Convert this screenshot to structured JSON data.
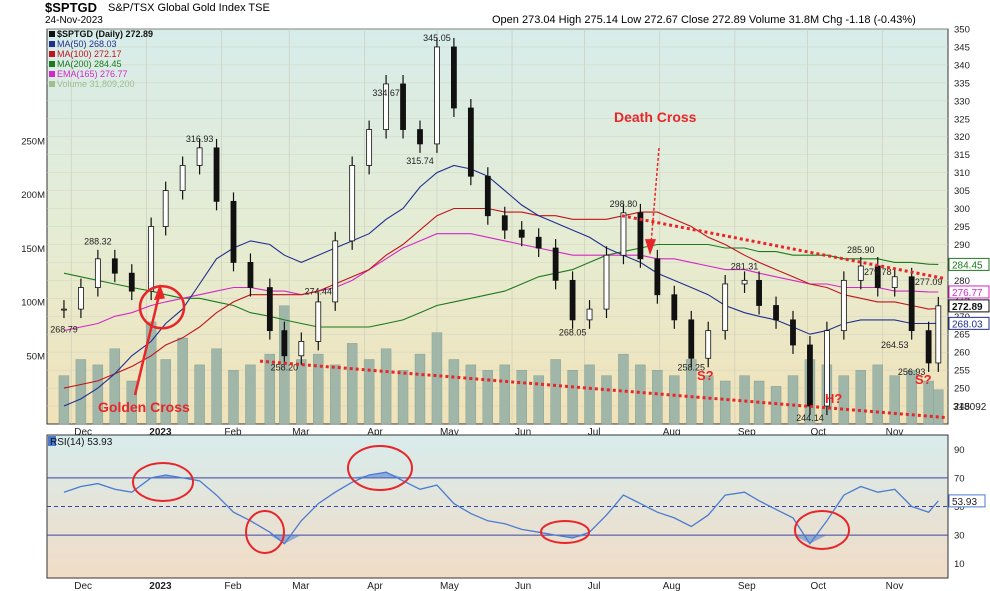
{
  "header": {
    "symbol": "$SPTGD",
    "name": "S&P/TSX Global Gold Index  TSE",
    "date": "24-Nov-2023",
    "ohlc_line": "Open 273.04  High 275.14  Low 272.67  Close 272.89  Volume 31.8M  Chg -1.18 (-0.43%)"
  },
  "chart_data": [
    {
      "type": "line",
      "panel": "price",
      "legend_position": "top-left",
      "legend": [
        {
          "label": "$SPTGD (Daily) 272.89",
          "color": "#111111"
        },
        {
          "label": "MA(50) 268.03",
          "color": "#1f2f8f"
        },
        {
          "label": "MA(100) 272.17",
          "color": "#c0141c"
        },
        {
          "label": "MA(200) 284.45",
          "color": "#1d7a1d"
        },
        {
          "label": "EMA(165) 276.77",
          "color": "#d427c8"
        },
        {
          "label": "Volume 31,809,200",
          "color": "#9fbf8f"
        }
      ],
      "x_labels": [
        "Dec",
        "2023",
        "Feb",
        "Mar",
        "Apr",
        "May",
        "Jun",
        "Jul",
        "Aug",
        "Sep",
        "Oct",
        "Nov"
      ],
      "ylim": [
        240,
        350
      ],
      "y_ticks": [
        245,
        250,
        255,
        260,
        265,
        270,
        275,
        280,
        285,
        290,
        295,
        300,
        305,
        310,
        315,
        320,
        325,
        330,
        335,
        340,
        345,
        350
      ],
      "volume_ticks": [
        "50M",
        "100M",
        "150M",
        "200M",
        "250M"
      ],
      "price_series": {
        "name": "$SPTGD",
        "x": [
          "2022-11-28",
          "2022-12-05",
          "2022-12-12",
          "2022-12-19",
          "2022-12-26",
          "2023-01-03",
          "2023-01-09",
          "2023-01-16",
          "2023-01-23",
          "2023-01-30",
          "2023-02-06",
          "2023-02-13",
          "2023-02-21",
          "2023-02-27",
          "2023-03-06",
          "2023-03-13",
          "2023-03-20",
          "2023-03-27",
          "2023-04-03",
          "2023-04-10",
          "2023-04-17",
          "2023-04-24",
          "2023-05-01",
          "2023-05-08",
          "2023-05-15",
          "2023-05-22",
          "2023-05-29",
          "2023-06-05",
          "2023-06-12",
          "2023-06-19",
          "2023-06-26",
          "2023-07-03",
          "2023-07-10",
          "2023-07-17",
          "2023-07-24",
          "2023-07-31",
          "2023-08-07",
          "2023-08-14",
          "2023-08-21",
          "2023-08-28",
          "2023-09-05",
          "2023-09-11",
          "2023-09-18",
          "2023-09-25",
          "2023-10-02",
          "2023-10-09",
          "2023-10-16",
          "2023-10-23",
          "2023-10-30",
          "2023-11-06",
          "2023-11-13",
          "2023-11-20",
          "2023-11-24"
        ],
        "values": [
          272,
          278,
          286,
          282,
          277,
          295,
          305,
          312,
          316.9,
          302,
          285,
          278,
          266,
          259,
          263,
          274,
          291,
          312,
          322,
          334.7,
          322,
          318,
          345,
          328,
          309,
          298,
          294,
          292,
          289,
          280,
          269,
          272,
          287,
          298.8,
          286,
          276,
          269,
          258.3,
          266,
          279,
          280,
          273,
          269,
          262,
          245,
          266,
          280,
          284,
          278,
          281,
          266,
          257,
          272.9
        ]
      },
      "ma50_values": [
        245,
        247,
        250,
        254,
        259,
        263,
        268,
        272,
        279,
        286,
        289,
        291,
        290,
        287,
        285,
        287,
        289,
        291,
        293,
        297,
        300,
        306,
        310,
        312,
        311,
        309,
        305,
        301,
        298,
        296,
        294,
        292,
        289,
        287,
        285,
        282,
        280,
        278,
        276,
        273,
        271,
        270,
        269,
        267,
        265,
        266,
        268,
        269,
        269,
        269,
        268,
        268,
        268.03
      ],
      "ma100_values": [
        250,
        251,
        252,
        254,
        256,
        259,
        262,
        264,
        267,
        271,
        274,
        276,
        276,
        276,
        276,
        277,
        279,
        281,
        283,
        287,
        290,
        294,
        298,
        300,
        300,
        300,
        299,
        299,
        298,
        298,
        297,
        297,
        297,
        298,
        299,
        299,
        297,
        295,
        292,
        290,
        287,
        285,
        283,
        281,
        279,
        278,
        276,
        275,
        274,
        274,
        273,
        272,
        272.17
      ],
      "ma200_values": [
        282,
        281,
        280,
        279,
        278,
        277,
        276,
        275,
        275,
        274,
        273,
        271,
        270,
        269,
        268,
        267,
        267,
        267,
        267,
        268,
        269,
        271,
        273,
        274,
        275,
        276,
        277,
        279,
        281,
        282,
        283,
        285,
        287,
        288,
        289,
        290,
        290,
        290,
        290,
        289,
        289,
        288,
        288,
        287,
        287,
        287,
        286,
        286,
        286,
        285,
        285,
        284.5,
        284.45
      ],
      "ema165_values": [
        266,
        267,
        268,
        270,
        271,
        273,
        274,
        275,
        276,
        277,
        278,
        278,
        277,
        277,
        276,
        277,
        278,
        280,
        283,
        286,
        289,
        291,
        293,
        293,
        293,
        292,
        291,
        290,
        289,
        288,
        287,
        287,
        287,
        287,
        287,
        286,
        286,
        285,
        284,
        283,
        283,
        282,
        281,
        280,
        279,
        279,
        278,
        278,
        278,
        277,
        277,
        276.8,
        276.77
      ],
      "volume_millions": [
        45,
        60,
        55,
        70,
        40,
        95,
        60,
        80,
        55,
        70,
        50,
        55,
        65,
        110,
        60,
        65,
        55,
        75,
        60,
        70,
        50,
        65,
        85,
        60,
        55,
        50,
        55,
        50,
        45,
        60,
        50,
        55,
        45,
        65,
        55,
        50,
        45,
        60,
        45,
        40,
        45,
        40,
        35,
        45,
        60,
        55,
        45,
        50,
        55,
        45,
        50,
        40,
        31.8
      ],
      "price_labels": [
        {
          "x": "2022-11-28",
          "text": "268.79"
        },
        {
          "x": "2022-12-12",
          "text": "288.32"
        },
        {
          "x": "2023-01-23",
          "text": "316.93"
        },
        {
          "x": "2023-02-27",
          "text": "258.20"
        },
        {
          "x": "2023-03-13",
          "text": "274.44"
        },
        {
          "x": "2023-04-10",
          "text": "334.67"
        },
        {
          "x": "2023-04-24",
          "text": "315.74"
        },
        {
          "x": "2023-05-01",
          "text": "345.05"
        },
        {
          "x": "2023-06-26",
          "text": "268.05"
        },
        {
          "x": "2023-07-17",
          "text": "298.80"
        },
        {
          "x": "2023-08-14",
          "text": "258.25"
        },
        {
          "x": "2023-09-05",
          "text": "281.31"
        },
        {
          "x": "2023-10-02",
          "text": "244.14"
        },
        {
          "x": "2023-10-23",
          "text": "285.90"
        },
        {
          "x": "2023-10-30",
          "text": "279.78"
        },
        {
          "x": "2023-11-06",
          "text": "264.53"
        },
        {
          "x": "2023-11-13",
          "text": "256.93"
        },
        {
          "x": "2023-11-20",
          "text": "277.09"
        }
      ],
      "right_tags": [
        {
          "value": 284.45,
          "text": "284.45",
          "color": "#1d7a1d"
        },
        {
          "value": 276.77,
          "text": "276.77",
          "color": "#d427c8"
        },
        {
          "value": 272.89,
          "text": "272.89",
          "color": "#111111"
        },
        {
          "value": 268.03,
          "text": "268.03",
          "color": "#1f2f8f"
        }
      ],
      "volume_tag": "318092",
      "annotations": [
        {
          "text": "Golden Cross",
          "color": "#e8262a"
        },
        {
          "text": "Death Cross",
          "color": "#e8262a"
        },
        {
          "text": "S?",
          "color": "#e8262a"
        },
        {
          "text": "H?",
          "color": "#e8262a"
        },
        {
          "text": "S?",
          "color": "#e8262a"
        }
      ]
    },
    {
      "type": "line",
      "panel": "rsi",
      "title": "RSI(14) 53.93",
      "ylim": [
        0,
        100
      ],
      "y_ticks": [
        10,
        30,
        50,
        70,
        90
      ],
      "reference_lines": [
        30,
        50,
        70
      ],
      "current_value_tag": "53.93",
      "x": [
        "2022-11-28",
        "2022-12-05",
        "2022-12-12",
        "2022-12-19",
        "2022-12-26",
        "2023-01-03",
        "2023-01-09",
        "2023-01-16",
        "2023-01-23",
        "2023-01-30",
        "2023-02-06",
        "2023-02-13",
        "2023-02-21",
        "2023-02-27",
        "2023-03-06",
        "2023-03-13",
        "2023-03-20",
        "2023-03-27",
        "2023-04-03",
        "2023-04-10",
        "2023-04-17",
        "2023-04-24",
        "2023-05-01",
        "2023-05-08",
        "2023-05-15",
        "2023-05-22",
        "2023-05-29",
        "2023-06-05",
        "2023-06-12",
        "2023-06-19",
        "2023-06-26",
        "2023-07-03",
        "2023-07-10",
        "2023-07-17",
        "2023-07-24",
        "2023-07-31",
        "2023-08-07",
        "2023-08-14",
        "2023-08-21",
        "2023-08-28",
        "2023-09-05",
        "2023-09-11",
        "2023-09-18",
        "2023-09-25",
        "2023-10-02",
        "2023-10-09",
        "2023-10-16",
        "2023-10-23",
        "2023-10-30",
        "2023-11-06",
        "2023-11-13",
        "2023-11-20",
        "2023-11-24"
      ],
      "values": [
        60,
        64,
        66,
        62,
        60,
        70,
        72,
        70,
        68,
        58,
        46,
        40,
        32,
        24,
        40,
        52,
        60,
        67,
        72,
        74,
        68,
        62,
        65,
        52,
        45,
        40,
        38,
        34,
        32,
        30,
        28,
        32,
        44,
        58,
        52,
        46,
        42,
        36,
        44,
        58,
        60,
        54,
        48,
        42,
        24,
        40,
        58,
        64,
        60,
        62,
        50,
        46,
        53.93
      ]
    }
  ]
}
